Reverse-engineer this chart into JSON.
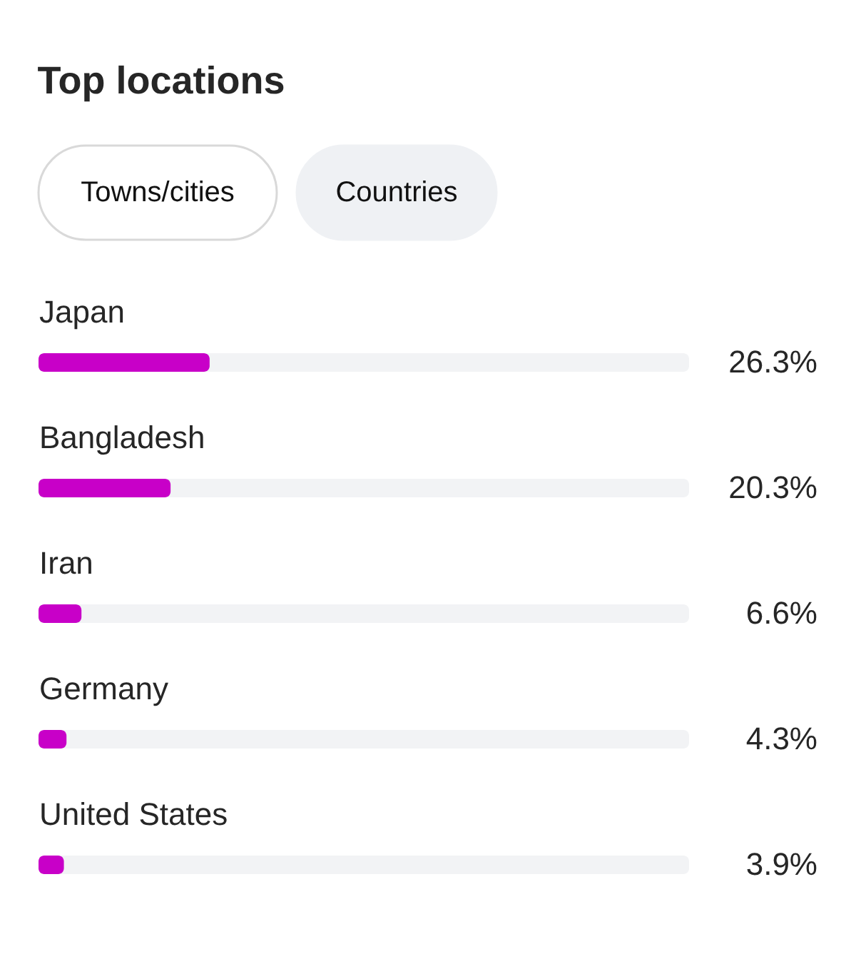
{
  "chart_data": {
    "type": "bar",
    "orientation": "horizontal",
    "title": "Top locations",
    "annotations": [
      "Towns/cities",
      "Countries"
    ],
    "categories": [
      "Japan",
      "Bangladesh",
      "Iran",
      "Germany",
      "United States"
    ],
    "values": [
      26.3,
      20.3,
      6.6,
      4.3,
      3.9
    ],
    "color": "#c800c8",
    "value_labels": [
      "26.3%",
      "20.3%",
      "6.6%",
      "4.3%",
      "3.9%"
    ],
    "xlim": [
      0,
      100
    ],
    "tick_labels": "y"
  }
}
